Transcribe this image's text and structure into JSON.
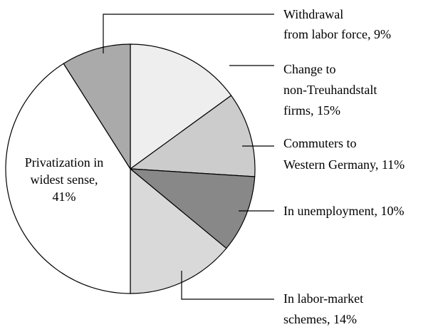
{
  "chart_data": {
    "type": "pie",
    "categories": [
      [
        "Change to",
        "non-Treuhandstalt",
        "firms, 15%"
      ],
      [
        "Commuters to",
        "Western Germany, 11%"
      ],
      [
        "In unemployment, 10%"
      ],
      [
        "In labor-market",
        "schemes, 14%"
      ],
      [
        "Privatization in",
        "widest sense,",
        "41%"
      ],
      [
        "Withdrawal",
        "from labor force, 9%"
      ]
    ],
    "values": [
      15,
      11,
      10,
      14,
      41,
      9
    ],
    "colors": [
      "#eeeeee",
      "#cccccc",
      "#888888",
      "#d9d9d9",
      "#ffffff",
      "#aaaaaa"
    ]
  }
}
